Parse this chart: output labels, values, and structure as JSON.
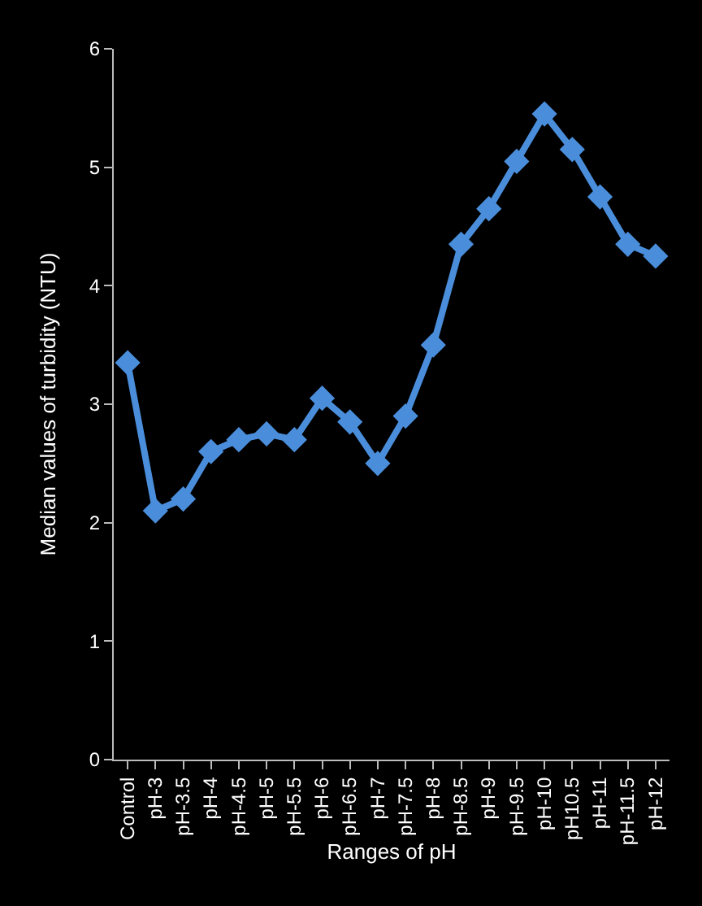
{
  "chart_data": {
    "type": "line",
    "xlabel": "Ranges of pH",
    "ylabel": "Median values of turbidity (NTU)",
    "categories": [
      "Control",
      "pH-3",
      "pH-3.5",
      "pH-4",
      "pH-4.5",
      "pH-5",
      "pH-5.5",
      "pH-6",
      "pH-6.5",
      "pH-7",
      "pH-7.5",
      "pH-8",
      "pH-8.5",
      "pH-9",
      "pH-9.5",
      "pH-10",
      "pH10.5",
      "pH-11",
      "pH-11.5",
      "pH-12"
    ],
    "series": [
      {
        "color": "#4a8edb",
        "values": [
          3.35,
          2.1,
          2.2,
          2.6,
          2.7,
          2.75,
          2.7,
          3.05,
          2.85,
          2.5,
          2.9,
          3.5,
          4.35,
          4.65,
          5.05,
          5.45,
          5.15,
          4.75,
          4.35,
          4.25
        ]
      }
    ],
    "ylim": [
      0,
      6
    ],
    "yticks": [
      0,
      1,
      2,
      3,
      4,
      5,
      6
    ],
    "grid": false,
    "marker": "diamond",
    "line_style": "solid"
  }
}
